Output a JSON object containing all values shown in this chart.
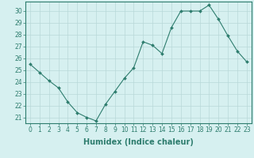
{
  "x": [
    0,
    1,
    2,
    3,
    4,
    5,
    6,
    7,
    8,
    9,
    10,
    11,
    12,
    13,
    14,
    15,
    16,
    17,
    18,
    19,
    20,
    21,
    22,
    23
  ],
  "y": [
    25.5,
    24.8,
    24.1,
    23.5,
    22.3,
    21.4,
    21.0,
    20.7,
    22.1,
    23.2,
    24.3,
    25.2,
    27.4,
    27.1,
    26.4,
    28.6,
    30.0,
    30.0,
    30.0,
    30.5,
    29.3,
    27.9,
    26.6,
    25.7
  ],
  "line_color": "#2e7d6e",
  "marker": "D",
  "marker_size": 2,
  "bg_color": "#d6f0f0",
  "grid_color": "#b8d8d8",
  "xlabel": "Humidex (Indice chaleur)",
  "xlim": [
    -0.5,
    23.5
  ],
  "ylim": [
    20.5,
    30.8
  ],
  "yticks": [
    21,
    22,
    23,
    24,
    25,
    26,
    27,
    28,
    29,
    30
  ],
  "xticks": [
    0,
    1,
    2,
    3,
    4,
    5,
    6,
    7,
    8,
    9,
    10,
    11,
    12,
    13,
    14,
    15,
    16,
    17,
    18,
    19,
    20,
    21,
    22,
    23
  ],
  "tick_color": "#2e7d6e",
  "spine_color": "#2e7d6e",
  "label_fontsize": 7,
  "tick_fontsize": 5.5
}
